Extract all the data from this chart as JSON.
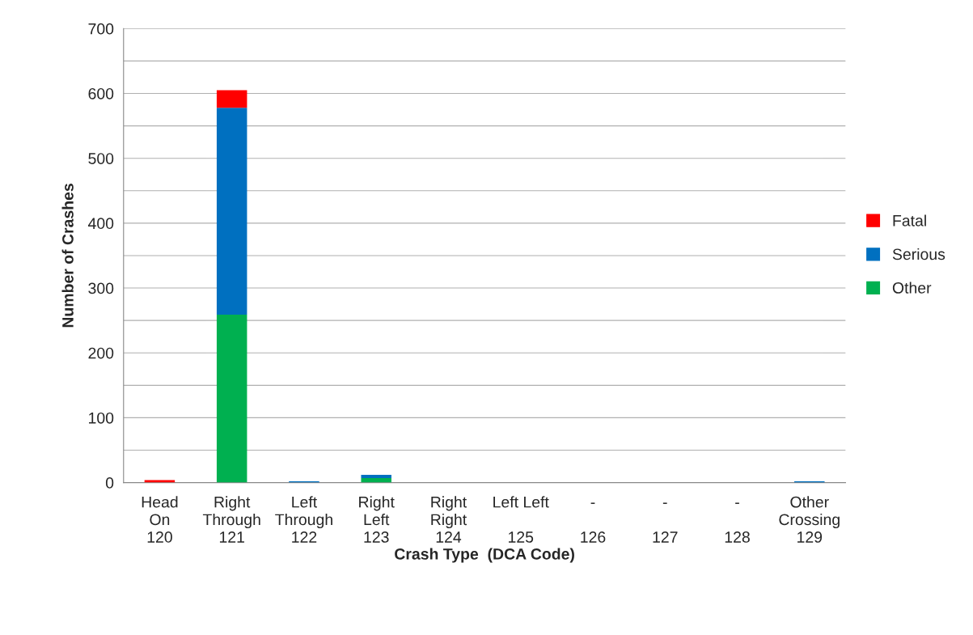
{
  "chart_data": {
    "type": "bar",
    "stacked": true,
    "xlabel": "Crash Type  (DCA Code)",
    "ylabel": "Number of Crashes",
    "categories": [
      "Head\nOn\n120",
      "Right\nThrough\n121",
      "Left\nThrough\n122",
      "Right\nLeft\n123",
      "Right\nRight\n124",
      "Left Left\n\n125",
      "-\n\n126",
      "-\n\n127",
      "-\n\n128",
      "Other\nCrossing\n129"
    ],
    "series": [
      {
        "name": "Other",
        "color": "#00b050",
        "values": [
          0,
          259,
          0,
          7,
          0,
          0,
          0,
          0,
          0,
          0
        ]
      },
      {
        "name": "Serious",
        "color": "#0070c0",
        "values": [
          0,
          319,
          2,
          5,
          0,
          0,
          0,
          0,
          0,
          2
        ]
      },
      {
        "name": "Fatal",
        "color": "#ff0000",
        "values": [
          4,
          27,
          0,
          0,
          0,
          0,
          0,
          0,
          0,
          0
        ]
      }
    ],
    "ylim": [
      0,
      700
    ],
    "yticks": [
      0,
      {
        "value": 50,
        "label": null
      },
      100,
      {
        "value": 150,
        "label": null
      },
      200,
      {
        "value": 250,
        "label": null
      },
      300,
      {
        "value": 350,
        "label": null
      },
      400,
      {
        "value": 450,
        "label": null
      },
      500,
      {
        "value": 550,
        "label": null
      },
      600,
      {
        "value": 650,
        "label": null
      },
      700
    ],
    "grid": "y",
    "legend": "right"
  }
}
